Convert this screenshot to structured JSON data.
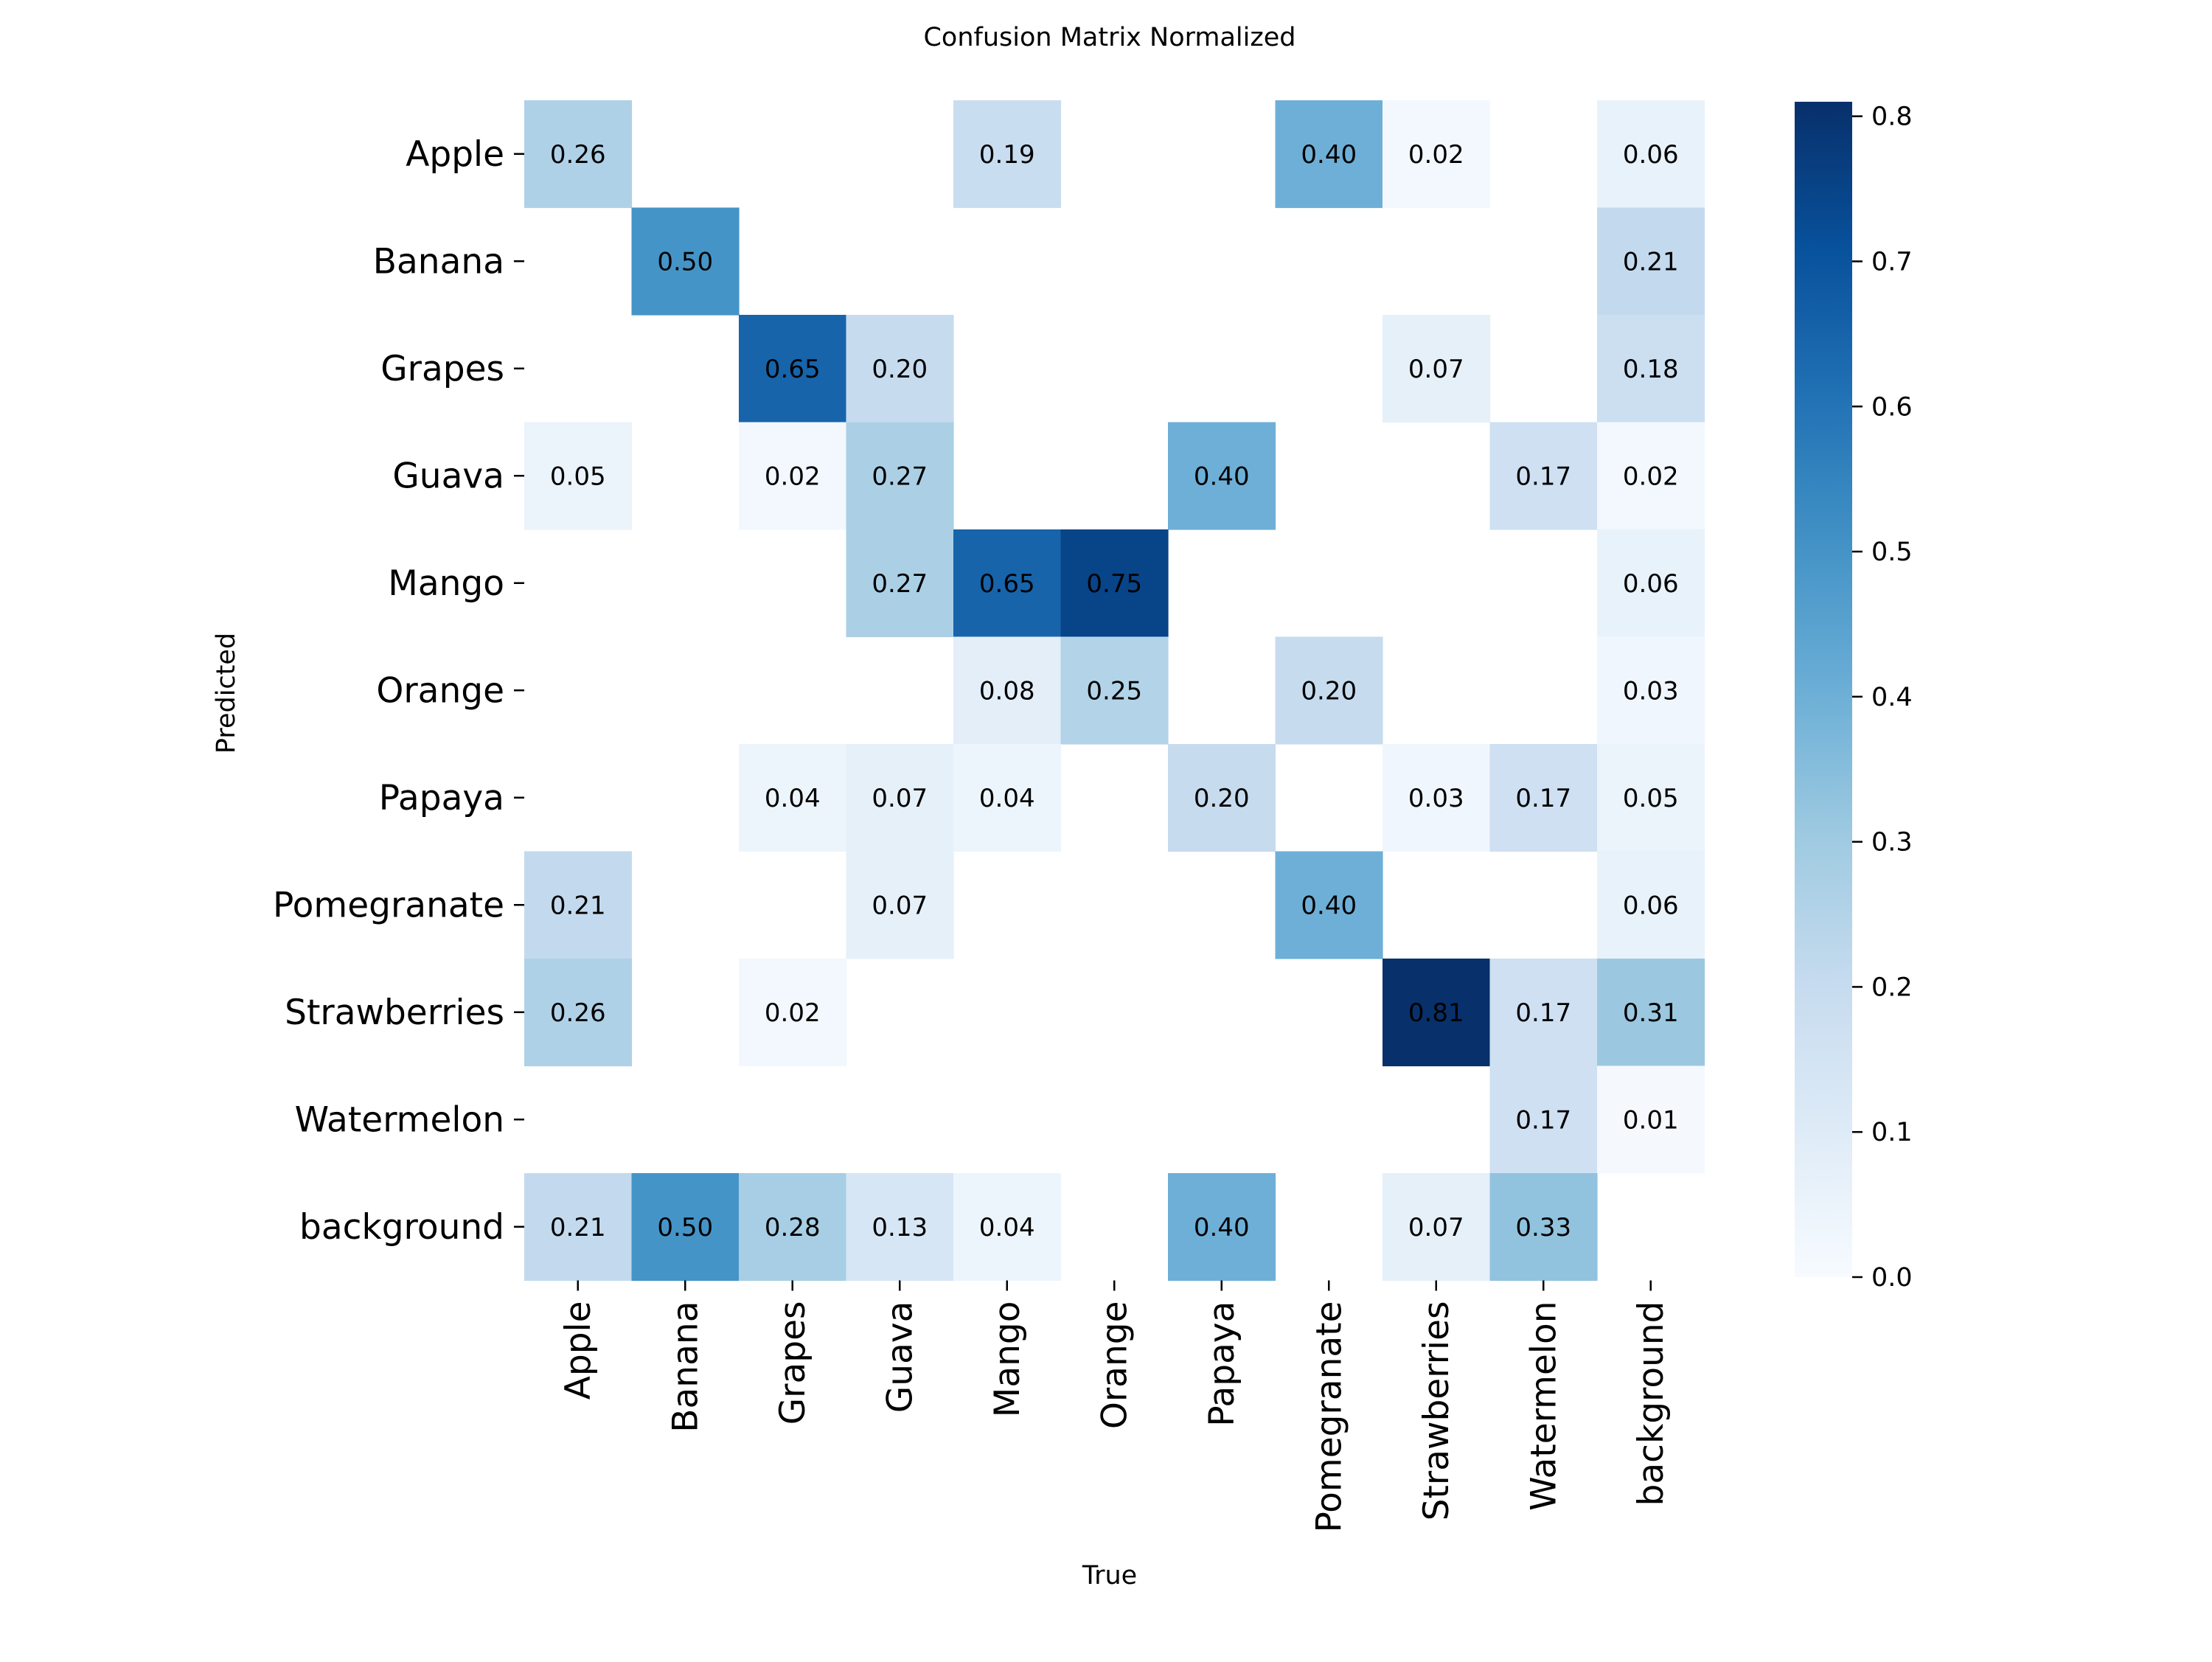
{
  "chart_data": {
    "type": "heatmap",
    "title": "Confusion Matrix Normalized",
    "xlabel": "True",
    "ylabel": "Predicted",
    "x_categories": [
      "Apple",
      "Banana",
      "Grapes",
      "Guava",
      "Mango",
      "Orange",
      "Papaya",
      "Pomegranate",
      "Strawberries",
      "Watermelon",
      "background"
    ],
    "y_categories": [
      "Apple",
      "Banana",
      "Grapes",
      "Guava",
      "Mango",
      "Orange",
      "Papaya",
      "Pomegranate",
      "Strawberries",
      "Watermelon",
      "background"
    ],
    "values": [
      [
        0.26,
        null,
        null,
        null,
        0.19,
        null,
        null,
        0.4,
        0.02,
        null,
        0.06
      ],
      [
        null,
        0.5,
        null,
        null,
        null,
        null,
        null,
        null,
        null,
        null,
        0.21
      ],
      [
        null,
        null,
        0.65,
        0.2,
        null,
        null,
        null,
        null,
        0.07,
        null,
        0.18
      ],
      [
        0.05,
        null,
        0.02,
        0.27,
        null,
        null,
        0.4,
        null,
        null,
        0.17,
        0.02
      ],
      [
        null,
        null,
        null,
        0.27,
        0.65,
        0.75,
        null,
        null,
        null,
        null,
        0.06
      ],
      [
        null,
        null,
        null,
        null,
        0.08,
        0.25,
        null,
        0.2,
        null,
        null,
        0.03
      ],
      [
        null,
        null,
        0.04,
        0.07,
        0.04,
        null,
        0.2,
        null,
        0.03,
        0.17,
        0.05
      ],
      [
        0.21,
        null,
        null,
        0.07,
        null,
        null,
        null,
        0.4,
        null,
        null,
        0.06
      ],
      [
        0.26,
        null,
        0.02,
        null,
        null,
        null,
        null,
        null,
        0.81,
        0.17,
        0.31
      ],
      [
        null,
        null,
        null,
        null,
        null,
        null,
        null,
        null,
        null,
        0.17,
        0.01
      ],
      [
        0.21,
        0.5,
        0.28,
        0.13,
        0.04,
        null,
        0.4,
        null,
        0.07,
        0.33,
        null
      ]
    ],
    "colorbar": {
      "range": [
        0.0,
        0.81
      ],
      "ticks": [
        "0.0",
        "0.1",
        "0.2",
        "0.3",
        "0.4",
        "0.5",
        "0.6",
        "0.7",
        "0.8"
      ],
      "colormap": "Blues"
    },
    "grid": false,
    "legend": "colorbar-right"
  }
}
